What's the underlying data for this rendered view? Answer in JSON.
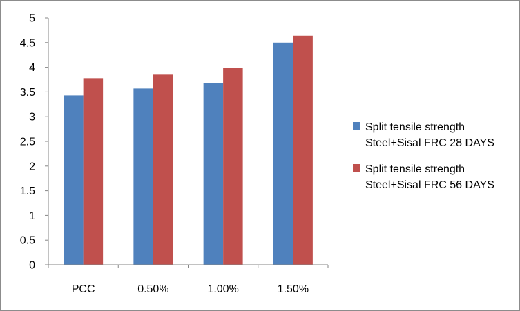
{
  "chart_data": {
    "type": "bar",
    "title": "",
    "xlabel": "",
    "ylabel": "",
    "categories": [
      "PCC",
      "0.50%",
      "1.00%",
      "1.50%"
    ],
    "series": [
      {
        "name": "Split tensile strength Steel+Sisal FRC 28 DAYS",
        "name_lines": [
          "Split tensile strength",
          "Steel+Sisal FRC 28 DAYS"
        ],
        "color": "#4f81bd",
        "values": [
          3.43,
          3.57,
          3.68,
          4.5
        ]
      },
      {
        "name": "Split tensile strength Steel+Sisal FRC 56 DAYS",
        "name_lines": [
          "Split tensile strength",
          "Steel+Sisal FRC 56 DAYS"
        ],
        "color": "#c0504d",
        "values": [
          3.78,
          3.85,
          3.99,
          4.64
        ]
      }
    ],
    "ylim": [
      0,
      5
    ],
    "yticks": [
      "0",
      "0.5",
      "1",
      "1.5",
      "2",
      "2.5",
      "3",
      "3.5",
      "4",
      "4.5",
      "5"
    ],
    "grid": false,
    "legend_position": "right"
  }
}
